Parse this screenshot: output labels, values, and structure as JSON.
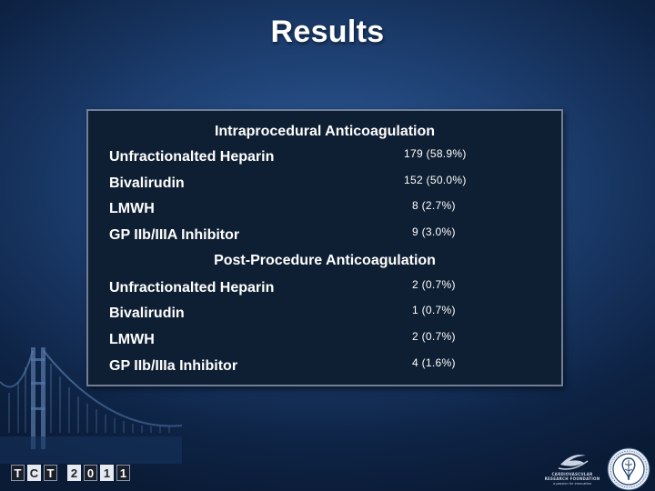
{
  "slide": {
    "title": "Results"
  },
  "intraprocedural": {
    "heading": "Intraprocedural Anticoagulation",
    "rows": [
      {
        "label": "Unfractionalted Heparin",
        "value": "179 (58.9%)"
      },
      {
        "label": "Bivalirudin",
        "value": "152 (50.0%)"
      },
      {
        "label": "LMWH",
        "value": "8 (2.7%)"
      },
      {
        "label": "GP IIb/IIIA Inhibitor",
        "value": "9 (3.0%)"
      }
    ]
  },
  "post_procedure": {
    "heading": "Post-Procedure Anticoagulation",
    "rows": [
      {
        "label": "Unfractionalted Heparin",
        "value": "2 (0.7%)"
      },
      {
        "label": "Bivalirudin",
        "value": "1 (0.7%)"
      },
      {
        "label": "LMWH",
        "value": "2 (0.7%)"
      },
      {
        "label": "GP IIb/IIIa Inhibitor",
        "value": "4 (1.6%)"
      }
    ]
  },
  "footer": {
    "tct_logo_letters": [
      "T",
      "C",
      "T",
      "2",
      "0",
      "1",
      "1"
    ],
    "crf_logo": {
      "line1": "CARDIOVASCULAR",
      "line2": "RESEARCH FOUNDATION",
      "line3": "a passion for innovation"
    },
    "seal_icon": "medical-society-seal-icon",
    "bridge_icon": "golden-gate-bridge-silhouette"
  }
}
